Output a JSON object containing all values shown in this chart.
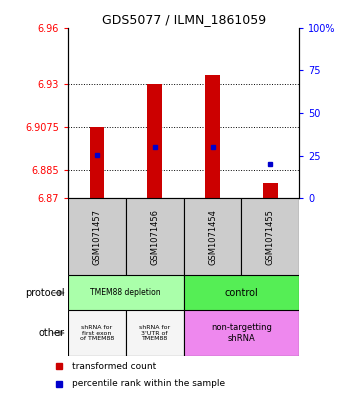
{
  "title": "GDS5077 / ILMN_1861059",
  "samples": [
    "GSM1071457",
    "GSM1071456",
    "GSM1071454",
    "GSM1071455"
  ],
  "red_bottoms": [
    6.8705,
    6.8705,
    6.8705,
    6.8705
  ],
  "red_tops": [
    6.9075,
    6.93,
    6.935,
    6.878
  ],
  "blue_vals": [
    6.893,
    6.897,
    6.897,
    6.888
  ],
  "y_left_ticks": [
    6.87,
    6.885,
    6.9075,
    6.93,
    6.96
  ],
  "y_left_labels": [
    "6.87",
    "6.885",
    "6.9075",
    "6.93",
    "6.96"
  ],
  "y_right_ticks_pct": [
    0,
    25,
    50,
    75,
    100
  ],
  "y_min": 6.87,
  "y_max": 6.96,
  "bar_color": "#cc0000",
  "dot_color": "#0000cc",
  "bar_width": 0.25,
  "protocol_light_green": "#aaffaa",
  "protocol_bright_green": "#55ee55",
  "other_light": "#f5f5f5",
  "other_pink": "#ee88ee",
  "sample_box_color": "#cccccc",
  "title_fontsize": 9,
  "tick_fontsize": 7,
  "label_fontsize": 6,
  "annotation_fontsize": 6
}
